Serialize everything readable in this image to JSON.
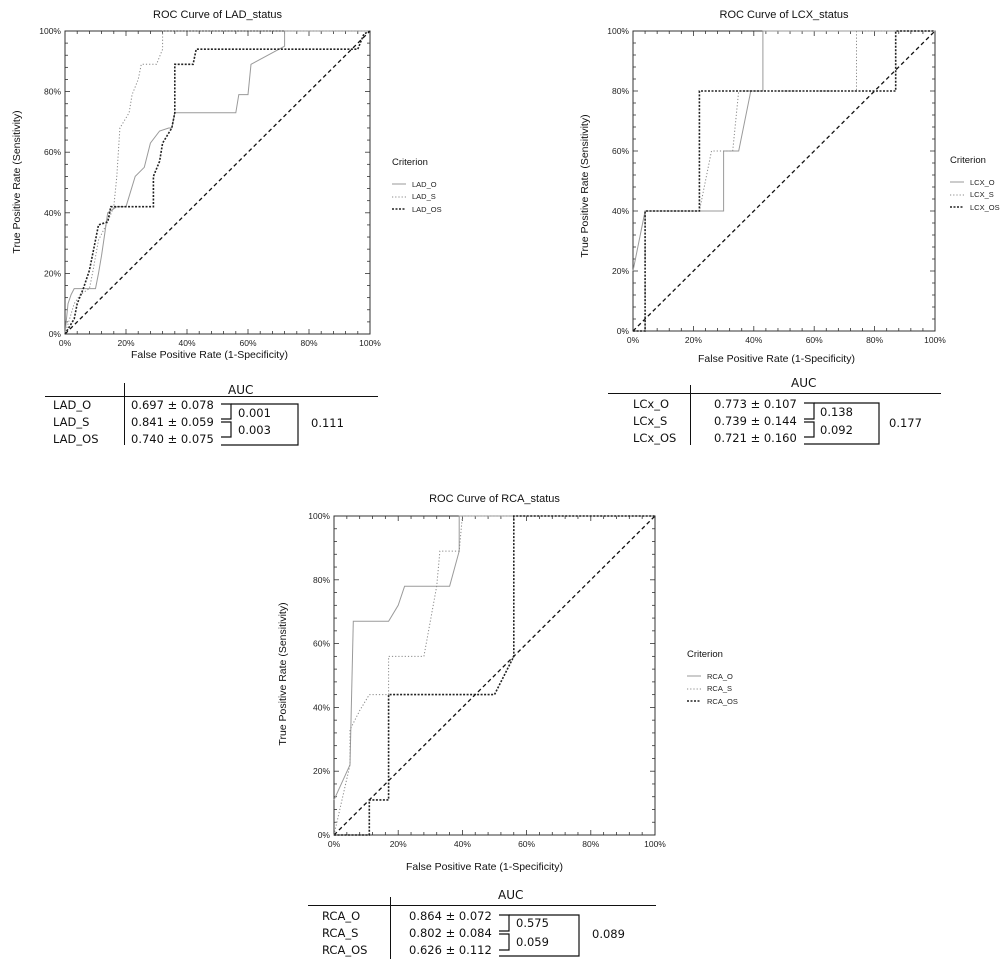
{
  "charts": [
    {
      "id": "lad",
      "type": "line",
      "title": "ROC Curve of LAD_status",
      "xlabel": "False Positive Rate (1-Specificity)",
      "ylabel": "True Positive Rate (Sensitivity)",
      "xticks": [
        "0%",
        "20%",
        "40%",
        "60%",
        "80%",
        "100%"
      ],
      "yticks": [
        "0%",
        "20%",
        "40%",
        "60%",
        "80%",
        "100%"
      ],
      "xlim": [
        0,
        100
      ],
      "ylim": [
        0,
        100
      ],
      "legend_title": "Criterion",
      "series": [
        {
          "name": "LAD_O",
          "style": "solid",
          "color": "#9a9a9a",
          "points": [
            [
              0,
              0
            ],
            [
              1,
              10
            ],
            [
              2,
              13
            ],
            [
              3,
              15
            ],
            [
              10,
              15
            ],
            [
              11,
              20
            ],
            [
              12,
              26
            ],
            [
              13,
              33
            ],
            [
              14,
              40
            ],
            [
              17,
              42
            ],
            [
              20,
              42
            ],
            [
              23,
              52
            ],
            [
              26,
              55
            ],
            [
              28,
              63
            ],
            [
              31,
              67
            ],
            [
              34,
              68
            ],
            [
              35,
              68
            ],
            [
              36,
              73
            ],
            [
              56,
              73
            ],
            [
              57,
              79
            ],
            [
              60,
              79
            ],
            [
              61,
              89
            ],
            [
              72,
              95
            ],
            [
              72,
              100
            ],
            [
              100,
              100
            ]
          ]
        },
        {
          "name": "LAD_S",
          "style": "dotted",
          "color": "#888888",
          "points": [
            [
              0,
              0
            ],
            [
              3,
              10
            ],
            [
              5,
              13
            ],
            [
              8,
              15
            ],
            [
              9,
              20
            ],
            [
              11,
              31
            ],
            [
              14,
              37
            ],
            [
              16,
              42
            ],
            [
              17,
              52
            ],
            [
              18,
              68
            ],
            [
              21,
              73
            ],
            [
              22,
              79
            ],
            [
              24,
              84
            ],
            [
              25,
              89
            ],
            [
              30,
              89
            ],
            [
              32,
              94
            ],
            [
              32,
              100
            ],
            [
              100,
              100
            ]
          ]
        },
        {
          "name": "LAD_OS",
          "style": "densedot",
          "color": "#222222",
          "points": [
            [
              0,
              0
            ],
            [
              3,
              5
            ],
            [
              4,
              10
            ],
            [
              6,
              15
            ],
            [
              8,
              21
            ],
            [
              10,
              31
            ],
            [
              11,
              36
            ],
            [
              14,
              37
            ],
            [
              15,
              42
            ],
            [
              29,
              42
            ],
            [
              29,
              52
            ],
            [
              31,
              57
            ],
            [
              32,
              63
            ],
            [
              35,
              68
            ],
            [
              36,
              73
            ],
            [
              36,
              89
            ],
            [
              42,
              89
            ],
            [
              43,
              94
            ],
            [
              72,
              94
            ],
            [
              96,
              94
            ],
            [
              98,
              99
            ],
            [
              100,
              100
            ]
          ]
        }
      ],
      "auc": {
        "header": "AUC",
        "rows": [
          {
            "label": "LAD_O",
            "value": "0.697 ± 0.078"
          },
          {
            "label": "LAD_S",
            "value": "0.841 ± 0.059"
          },
          {
            "label": "LAD_OS",
            "value": "0.740 ± 0.075"
          }
        ],
        "p_12": "0.001",
        "p_23": "0.003",
        "p_13": "0.111"
      }
    },
    {
      "id": "lcx",
      "type": "line",
      "title": "ROC Curve of LCX_status",
      "xlabel": "False Positive Rate (1-Specificity)",
      "ylabel": "True Positive Rate (Sensitivity)",
      "xticks": [
        "0%",
        "20%",
        "40%",
        "60%",
        "80%",
        "100%"
      ],
      "yticks": [
        "0%",
        "20%",
        "40%",
        "60%",
        "80%",
        "100%"
      ],
      "xlim": [
        0,
        100
      ],
      "ylim": [
        0,
        100
      ],
      "legend_title": "Criterion",
      "series": [
        {
          "name": "LCX_O",
          "style": "solid",
          "color": "#9a9a9a",
          "points": [
            [
              0,
              20
            ],
            [
              4,
              40
            ],
            [
              30,
              40
            ],
            [
              30,
              60
            ],
            [
              35,
              60
            ],
            [
              39,
              80
            ],
            [
              43,
              80
            ],
            [
              43,
              100
            ],
            [
              100,
              100
            ]
          ]
        },
        {
          "name": "LCX_S",
          "style": "dotted",
          "color": "#888888",
          "points": [
            [
              0,
              0
            ],
            [
              4,
              0
            ],
            [
              4,
              40
            ],
            [
              22,
              40
            ],
            [
              26,
              60
            ],
            [
              33,
              60
            ],
            [
              35,
              80
            ],
            [
              74,
              80
            ],
            [
              74,
              100
            ],
            [
              100,
              100
            ]
          ]
        },
        {
          "name": "LCX_OS",
          "style": "densedot",
          "color": "#222222",
          "points": [
            [
              0,
              0
            ],
            [
              4,
              0
            ],
            [
              4,
              40
            ],
            [
              22,
              40
            ],
            [
              22,
              80
            ],
            [
              87,
              80
            ],
            [
              87,
              100
            ],
            [
              100,
              100
            ]
          ]
        }
      ],
      "auc": {
        "header": "AUC",
        "rows": [
          {
            "label": "LCx_O",
            "value": "0.773 ± 0.107"
          },
          {
            "label": "LCx_S",
            "value": "0.739 ± 0.144"
          },
          {
            "label": "LCx_OS",
            "value": "0.721 ± 0.160"
          }
        ],
        "p_12": "0.138",
        "p_23": "0.092",
        "p_13": "0.177"
      }
    },
    {
      "id": "rca",
      "type": "line",
      "title": "ROC Curve of RCA_status",
      "xlabel": "False Positive Rate (1-Specificity)",
      "ylabel": "True Positive Rate (Sensitivity)",
      "xticks": [
        "0%",
        "20%",
        "40%",
        "60%",
        "80%",
        "100%"
      ],
      "yticks": [
        "0%",
        "20%",
        "40%",
        "60%",
        "80%",
        "100%"
      ],
      "xlim": [
        0,
        100
      ],
      "ylim": [
        0,
        100
      ],
      "legend_title": "Criterion",
      "series": [
        {
          "name": "RCA_O",
          "style": "solid",
          "color": "#9a9a9a",
          "points": [
            [
              0,
              11
            ],
            [
              5,
              22
            ],
            [
              6,
              67
            ],
            [
              17,
              67
            ],
            [
              20,
              72
            ],
            [
              22,
              78
            ],
            [
              34,
              78
            ],
            [
              36,
              78
            ],
            [
              39,
              89
            ],
            [
              39,
              100
            ],
            [
              44,
              100
            ],
            [
              100,
              100
            ]
          ]
        },
        {
          "name": "RCA_S",
          "style": "dotted",
          "color": "#888888",
          "points": [
            [
              0,
              0
            ],
            [
              5,
              22
            ],
            [
              5,
              33
            ],
            [
              8,
              39
            ],
            [
              11,
              44
            ],
            [
              17,
              44
            ],
            [
              17,
              56
            ],
            [
              28,
              56
            ],
            [
              32,
              78
            ],
            [
              33,
              89
            ],
            [
              39,
              89
            ],
            [
              40,
              100
            ],
            [
              100,
              100
            ]
          ]
        },
        {
          "name": "RCA_OS",
          "style": "densedot",
          "color": "#222222",
          "points": [
            [
              0,
              0
            ],
            [
              11,
              0
            ],
            [
              11,
              11
            ],
            [
              17,
              11
            ],
            [
              17,
              44
            ],
            [
              50,
              44
            ],
            [
              56,
              56
            ],
            [
              56,
              100
            ],
            [
              100,
              100
            ]
          ]
        }
      ],
      "auc": {
        "header": "AUC",
        "rows": [
          {
            "label": "RCA_O",
            "value": "0.864 ± 0.072"
          },
          {
            "label": "RCA_S",
            "value": "0.802 ± 0.084"
          },
          {
            "label": "RCA_OS",
            "value": "0.626 ± 0.112"
          }
        ],
        "p_12": "0.575",
        "p_23": "0.059",
        "p_13": "0.089"
      }
    }
  ]
}
